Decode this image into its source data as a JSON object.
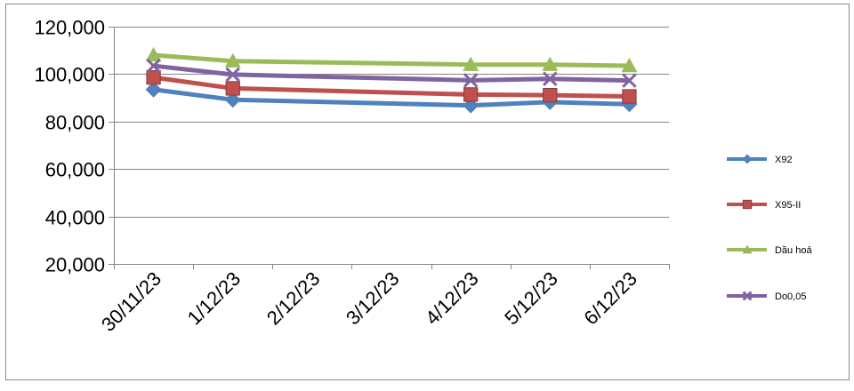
{
  "chart_data": {
    "type": "line",
    "x": [
      "30/11/23",
      "1/12/23",
      "2/12/23",
      "3/12/23",
      "4/12/23",
      "5/12/23",
      "6/12/23"
    ],
    "yticks": [
      "20,000",
      "40,000",
      "60,000",
      "80,000",
      "100,000",
      "120,000"
    ],
    "ylim": [
      20000,
      120000
    ],
    "grid": true,
    "legend_position": "right",
    "series": [
      {
        "name": "X92",
        "color": "#4f81bd",
        "marker": "diamond",
        "values": [
          93500,
          89200,
          null,
          null,
          86800,
          88200,
          87300
        ]
      },
      {
        "name": "X95-II",
        "color": "#c0504d",
        "marker": "square",
        "values": [
          98600,
          94000,
          null,
          null,
          91400,
          91100,
          90600
        ]
      },
      {
        "name": "Dầu hoả",
        "color": "#9bbb59",
        "marker": "triangle",
        "values": [
          108000,
          105500,
          null,
          null,
          104000,
          104000,
          103500
        ]
      },
      {
        "name": "Do0,05",
        "color": "#8064a2",
        "marker": "x",
        "values": [
          103500,
          99800,
          null,
          null,
          97400,
          98000,
          97300
        ]
      }
    ]
  }
}
